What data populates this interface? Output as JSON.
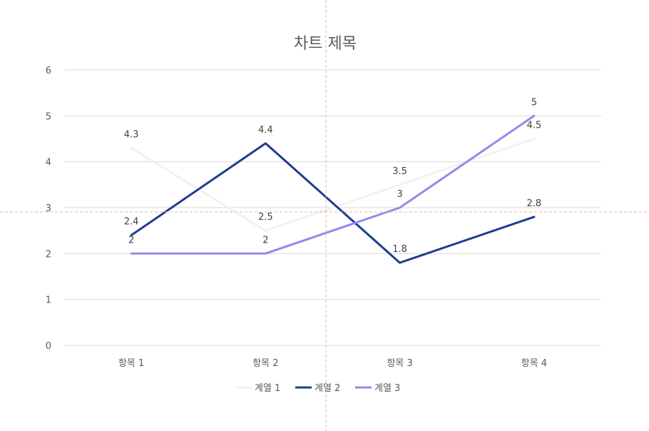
{
  "colors": {
    "series_1": "#f2f2f2",
    "series_2": "#1f3d8f",
    "series_3": "#9a87e8",
    "grid": "#d9d9d9",
    "crosshair": "#f4b183",
    "text": "#595959"
  },
  "chart_data": {
    "type": "line",
    "title": "차트 제목",
    "categories": [
      "항목 1",
      "항목 2",
      "항목 3",
      "항목 4"
    ],
    "series": [
      {
        "name": "계열 1",
        "values": [
          4.3,
          2.5,
          3.5,
          4.5
        ],
        "color": "#f2f2f2",
        "labels": [
          "4.3",
          "2.5",
          "3.5",
          "4.5"
        ]
      },
      {
        "name": "계열 2",
        "values": [
          2.4,
          4.4,
          1.8,
          2.8
        ],
        "color": "#1f3d8f",
        "labels": [
          "2.4",
          "4.4",
          "1.8",
          "2.8"
        ]
      },
      {
        "name": "계열 3",
        "values": [
          2,
          2,
          3,
          5
        ],
        "color": "#9a87e8",
        "labels": [
          "2",
          "2",
          "3",
          "5"
        ]
      }
    ],
    "ylim": [
      0,
      6
    ],
    "yticks": [
      "0",
      "1",
      "2",
      "3",
      "4",
      "5",
      "6"
    ],
    "grid": true,
    "legend": "bottom"
  }
}
